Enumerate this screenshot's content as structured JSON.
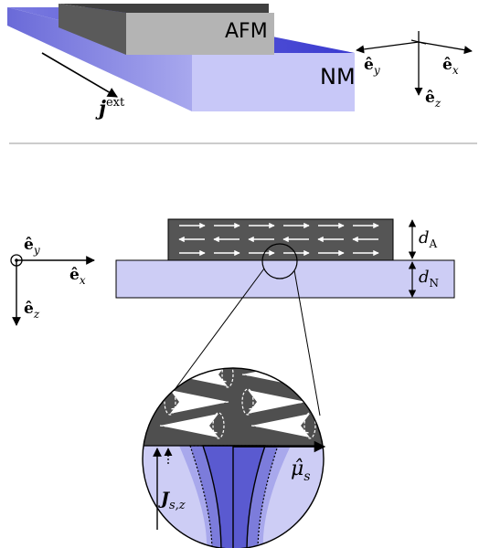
{
  "top_panel": {
    "afm_label": "AFM",
    "nm_label": "NM",
    "current": {
      "symbol": "j",
      "superscript": "ext"
    },
    "axes": {
      "ey": "ê",
      "ey_sub": "y",
      "ex": "ê",
      "ex_sub": "x",
      "ez": "ê",
      "ez_sub": "z"
    }
  },
  "bottom_panel": {
    "axes": {
      "ey": "ê",
      "ey_sub": "y",
      "ex": "ê",
      "ex_sub": "x",
      "ez": "ê",
      "ez_sub": "z"
    },
    "thickness_afm": {
      "symbol": "d",
      "sub": "A"
    },
    "thickness_nm": {
      "symbol": "d",
      "sub": "N"
    },
    "spin_current": {
      "symbol": "J",
      "sub": "s,z"
    },
    "spin_accumulation": {
      "symbol": "μ̂",
      "sub": "s"
    }
  },
  "colors": {
    "afm_dark": "#555555",
    "afm_top": "#404040",
    "afm_light": "#b8b8b8",
    "nm_top": "#4a4ad0",
    "nm_side": "#c8c8f8",
    "nm_light": "#cdcdf5",
    "divider": "#bbbbbb"
  }
}
